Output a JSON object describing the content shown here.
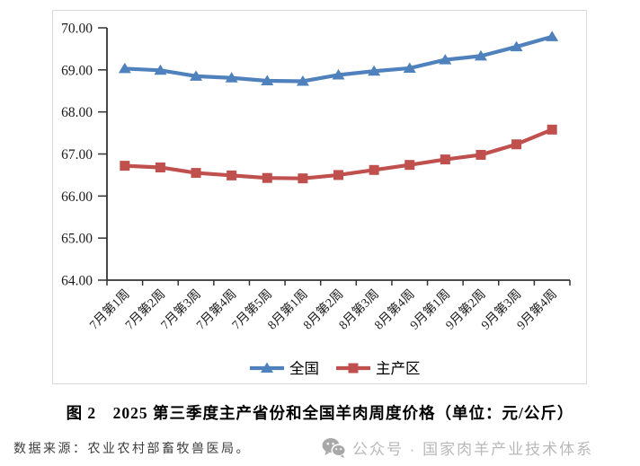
{
  "chart_data": {
    "type": "line",
    "title": "",
    "xlabel": "",
    "ylabel": "",
    "unit": "元/公斤",
    "categories": [
      "7月第1周",
      "7月第2周",
      "7月第3周",
      "7月第4周",
      "7月第5周",
      "8月第1周",
      "8月第2周",
      "8月第3周",
      "8月第4周",
      "9月第1周",
      "9月第2周",
      "9月第3周",
      "9月第4周"
    ],
    "series": [
      {
        "name": "全国",
        "color": "#4F81BD",
        "marker": "triangle",
        "values": [
          69.03,
          68.99,
          68.85,
          68.81,
          68.74,
          68.73,
          68.88,
          68.97,
          69.04,
          69.24,
          69.33,
          69.55,
          69.79
        ]
      },
      {
        "name": "主产区",
        "color": "#C0504D",
        "marker": "square",
        "values": [
          66.72,
          66.68,
          66.55,
          66.49,
          66.43,
          66.42,
          66.5,
          66.62,
          66.74,
          66.87,
          66.98,
          67.23,
          67.58
        ]
      }
    ],
    "ylim": [
      64,
      70
    ],
    "ytick_step": 1,
    "ytick_decimals": 2,
    "grid": false,
    "legend_position": "bottom",
    "axis_color": "#333333",
    "tick_label_color": "#1a1a1a"
  },
  "caption": {
    "text": "图 2　2025 第三季度主产省份和全国羊肉周度价格（单位：元/公斤）"
  },
  "footer": {
    "source": "数据来源：农业农村部畜牧兽医局。",
    "wechat_icon": "wechat-icon",
    "watermark": "公众号 · 国家肉羊产业技术体系"
  }
}
